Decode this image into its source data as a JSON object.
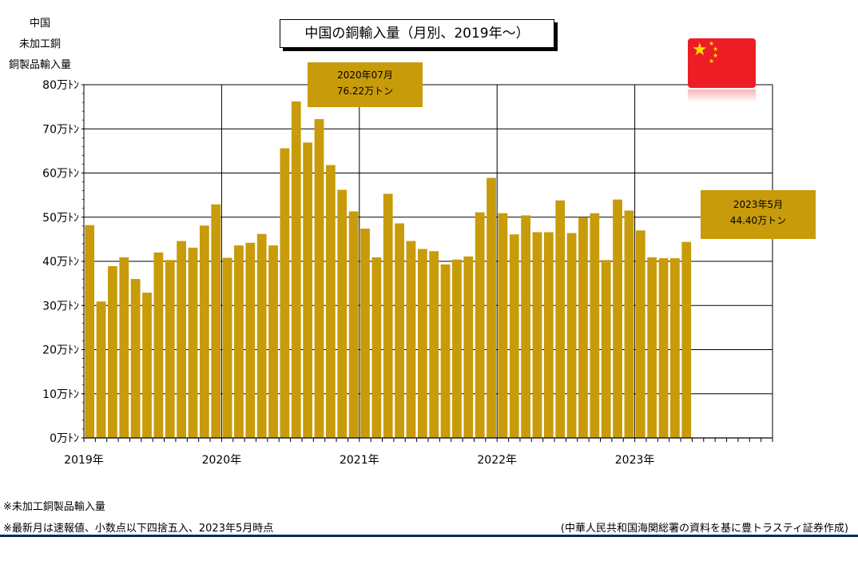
{
  "y_label_lines": [
    "中国",
    "未加工銅",
    "銅製品輸入量"
  ],
  "title": "中国の銅輸入量（月別、2019年～）",
  "callout_peak": {
    "line1": "2020年07月",
    "line2": "76.22万トン"
  },
  "callout_latest": {
    "line1": "2023年5月",
    "line2": "44.40万トン"
  },
  "footnotes": {
    "note1": "※未加工銅製品輸入量",
    "note2": "※最新月は速報値、小数点以下四捨五入、2023年5月時点",
    "source": "(中華人民共和国海関総署の資料を基に豊トラスティ証券作成)"
  },
  "colors": {
    "bar": "#c89b0a",
    "grid": "#000000",
    "flag": "#ee1c25",
    "flag_star": "#ffde00",
    "rule": "#0a2a5e"
  },
  "icons": {
    "flag": "china-flag-icon"
  },
  "chart_data": {
    "type": "bar",
    "ylim": [
      0,
      80
    ],
    "y_ticks": [
      "0万ﾄﾝ",
      "10万ﾄﾝ",
      "20万ﾄﾝ",
      "30万ﾄﾝ",
      "40万ﾄﾝ",
      "50万ﾄﾝ",
      "60万ﾄﾝ",
      "70万ﾄﾝ",
      "80万ﾄﾝ"
    ],
    "x_ticks": [
      "2019年",
      "2020年",
      "2021年",
      "2022年",
      "2023年"
    ],
    "months_total": 60,
    "unit": "万トン",
    "grid": true,
    "values": [
      48.2,
      30.9,
      38.9,
      40.9,
      36.0,
      32.9,
      42.0,
      40.3,
      44.6,
      43.1,
      48.1,
      52.9,
      40.8,
      43.6,
      44.2,
      46.2,
      43.6,
      65.6,
      76.22,
      66.9,
      72.2,
      61.8,
      56.2,
      51.3,
      47.4,
      40.9,
      55.3,
      48.6,
      44.6,
      42.8,
      42.3,
      39.3,
      40.4,
      41.1,
      51.1,
      58.9,
      50.9,
      46.1,
      50.4,
      46.6,
      46.6,
      53.8,
      46.4,
      49.9,
      50.9,
      40.3,
      54.0,
      51.5,
      47.0,
      40.9,
      40.7,
      40.7,
      44.4
    ]
  }
}
